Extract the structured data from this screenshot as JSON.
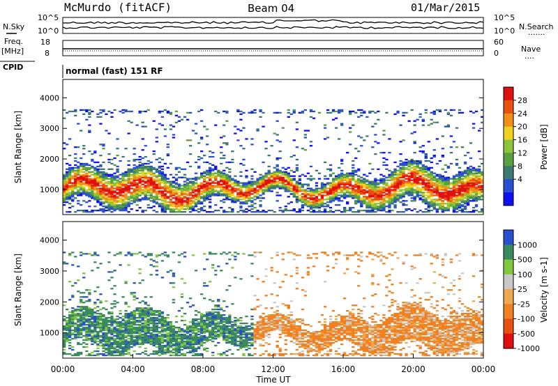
{
  "header": {
    "station": "McMurdo (fitACF)",
    "beam": "Beam 04",
    "date": "01/Mar/2015"
  },
  "noise_panel": {
    "left_label": "N.Sky",
    "right_label": "N.Search",
    "left_ticks": [
      "10^5",
      "10^0"
    ],
    "right_ticks": [
      "10^5",
      "10^0"
    ],
    "right_dots": "......."
  },
  "freq_panel": {
    "left_label_1": "Freq.",
    "left_label_2": "[MHz]",
    "right_label": "Nave",
    "left_ticks": [
      "18",
      "8"
    ],
    "right_ticks": [
      "60",
      "0"
    ],
    "right_dots": "...."
  },
  "cpid": {
    "label": "CPID",
    "text": "normal (fast) 151 RF"
  },
  "colors": {
    "power_scale": [
      "#1010ee",
      "#2a4fd0",
      "#3a7a70",
      "#5aa040",
      "#8cc43a",
      "#f0d020",
      "#f09018",
      "#e85010",
      "#e01010"
    ],
    "velocity_scale": [
      "#e01010",
      "#e85010",
      "#f08020",
      "#f0a850",
      "#c8c8c8",
      "#80c840",
      "#3a8a60",
      "#2a4fd0"
    ]
  },
  "chart_data": [
    {
      "type": "heatmap",
      "name": "power",
      "ylabel": "Slant Range [km]",
      "yticks": [
        1000,
        2000,
        3000,
        4000
      ],
      "ylim": [
        180,
        4600
      ],
      "xlim": [
        "00:00",
        "24:00"
      ],
      "colorbar": {
        "label": "Power [dB]",
        "ticks": [
          "4",
          "8",
          "12",
          "16",
          "20",
          "24",
          "28"
        ],
        "range": [
          0,
          32
        ]
      }
    },
    {
      "type": "heatmap",
      "name": "velocity",
      "ylabel": "Slant Range [km]",
      "yticks": [
        1000,
        2000,
        3000,
        4000
      ],
      "ylim": [
        180,
        4600
      ],
      "xlim": [
        "00:00",
        "24:00"
      ],
      "xticks": [
        "00:00",
        "04:00",
        "08:00",
        "12:00",
        "16:00",
        "20:00",
        "00:00"
      ],
      "xlabel": "Time UT",
      "colorbar": {
        "label": "Velocity [m s-1]",
        "ticks": [
          "1000",
          "500",
          "100",
          "25",
          "-25",
          "-100",
          "-500",
          "-1000"
        ]
      }
    }
  ]
}
